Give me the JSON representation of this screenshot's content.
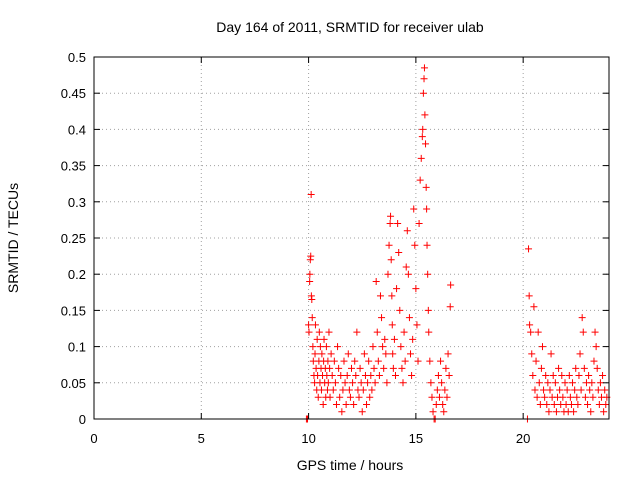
{
  "chart_data": {
    "type": "scatter",
    "title": "Day 164 of 2011, SRMTID for receiver ulab",
    "xlabel": "GPS time / hours",
    "ylabel": "SRMTID / TECUs",
    "xlim": [
      0,
      24
    ],
    "ylim": [
      0,
      0.5
    ],
    "x_ticks": [
      0,
      5,
      10,
      15,
      20
    ],
    "x_tick_labels": [
      "0",
      "5",
      "10",
      "15",
      "20"
    ],
    "y_ticks": [
      0,
      0.05,
      0.1,
      0.15,
      0.2,
      0.25,
      0.3,
      0.35,
      0.4,
      0.45,
      0.5
    ],
    "y_tick_labels": [
      "0",
      "0.05",
      "0.1",
      "0.15",
      "0.2",
      "0.25",
      "0.3",
      "0.35",
      "0.4",
      "0.45",
      "0.5"
    ],
    "grid": true,
    "marker": "+",
    "color": "#ff0000",
    "series": [
      {
        "name": "SRMTID",
        "points": [
          [
            9.9,
            0.0
          ],
          [
            9.95,
            0.0
          ],
          [
            10.0,
            0.13
          ],
          [
            10.02,
            0.12
          ],
          [
            10.05,
            0.19
          ],
          [
            10.06,
            0.2
          ],
          [
            10.08,
            0.22
          ],
          [
            10.1,
            0.225
          ],
          [
            10.12,
            0.31
          ],
          [
            10.13,
            0.17
          ],
          [
            10.15,
            0.165
          ],
          [
            10.17,
            0.14
          ],
          [
            10.2,
            0.1
          ],
          [
            10.22,
            0.08
          ],
          [
            10.25,
            0.06
          ],
          [
            10.28,
            0.05
          ],
          [
            10.3,
            0.09
          ],
          [
            10.32,
            0.13
          ],
          [
            10.35,
            0.07
          ],
          [
            10.38,
            0.04
          ],
          [
            10.4,
            0.11
          ],
          [
            10.42,
            0.06
          ],
          [
            10.45,
            0.03
          ],
          [
            10.48,
            0.08
          ],
          [
            10.5,
            0.12
          ],
          [
            10.53,
            0.05
          ],
          [
            10.55,
            0.1
          ],
          [
            10.58,
            0.07
          ],
          [
            10.6,
            0.04
          ],
          [
            10.62,
            0.09
          ],
          [
            10.65,
            0.06
          ],
          [
            10.68,
            0.02
          ],
          [
            10.7,
            0.08
          ],
          [
            10.72,
            0.11
          ],
          [
            10.75,
            0.05
          ],
          [
            10.78,
            0.07
          ],
          [
            10.8,
            0.03
          ],
          [
            10.83,
            0.1
          ],
          [
            10.85,
            0.06
          ],
          [
            10.88,
            0.04
          ],
          [
            10.9,
            0.08
          ],
          [
            10.92,
            0.05
          ],
          [
            10.95,
            0.12
          ],
          [
            10.98,
            0.07
          ],
          [
            11.0,
            0.03
          ],
          [
            11.05,
            0.09
          ],
          [
            11.1,
            0.06
          ],
          [
            11.15,
            0.04
          ],
          [
            11.2,
            0.08
          ],
          [
            11.25,
            0.05
          ],
          [
            11.3,
            0.02
          ],
          [
            11.35,
            0.1
          ],
          [
            11.4,
            0.07
          ],
          [
            11.45,
            0.03
          ],
          [
            11.5,
            0.06
          ],
          [
            11.55,
            0.01
          ],
          [
            11.6,
            0.04
          ],
          [
            11.65,
            0.08
          ],
          [
            11.7,
            0.05
          ],
          [
            11.75,
            0.02
          ],
          [
            11.8,
            0.06
          ],
          [
            11.85,
            0.09
          ],
          [
            11.9,
            0.04
          ],
          [
            11.95,
            0.03
          ],
          [
            12.0,
            0.07
          ],
          [
            12.05,
            0.05
          ],
          [
            12.1,
            0.02
          ],
          [
            12.15,
            0.08
          ],
          [
            12.2,
            0.06
          ],
          [
            12.25,
            0.12
          ],
          [
            12.3,
            0.04
          ],
          [
            12.35,
            0.03
          ],
          [
            12.4,
            0.07
          ],
          [
            12.45,
            0.05
          ],
          [
            12.5,
            0.01
          ],
          [
            12.55,
            0.04
          ],
          [
            12.6,
            0.09
          ],
          [
            12.65,
            0.06
          ],
          [
            12.7,
            0.02
          ],
          [
            12.75,
            0.05
          ],
          [
            12.8,
            0.08
          ],
          [
            12.85,
            0.03
          ],
          [
            12.9,
            0.06
          ],
          [
            12.95,
            0.04
          ],
          [
            13.0,
            0.1
          ],
          [
            13.05,
            0.07
          ],
          [
            13.1,
            0.05
          ],
          [
            13.15,
            0.19
          ],
          [
            13.2,
            0.12
          ],
          [
            13.25,
            0.08
          ],
          [
            13.3,
            0.06
          ],
          [
            13.35,
            0.17
          ],
          [
            13.4,
            0.14
          ],
          [
            13.45,
            0.1
          ],
          [
            13.5,
            0.07
          ],
          [
            13.55,
            0.11
          ],
          [
            13.6,
            0.09
          ],
          [
            13.65,
            0.05
          ],
          [
            13.7,
            0.2
          ],
          [
            13.75,
            0.24
          ],
          [
            13.8,
            0.27
          ],
          [
            13.82,
            0.28
          ],
          [
            13.85,
            0.22
          ],
          [
            13.88,
            0.17
          ],
          [
            13.9,
            0.13
          ],
          [
            13.92,
            0.09
          ],
          [
            13.95,
            0.07
          ],
          [
            14.0,
            0.11
          ],
          [
            14.05,
            0.06
          ],
          [
            14.1,
            0.18
          ],
          [
            14.15,
            0.27
          ],
          [
            14.2,
            0.23
          ],
          [
            14.25,
            0.15
          ],
          [
            14.3,
            0.1
          ],
          [
            14.35,
            0.07
          ],
          [
            14.4,
            0.05
          ],
          [
            14.45,
            0.12
          ],
          [
            14.5,
            0.08
          ],
          [
            14.55,
            0.21
          ],
          [
            14.6,
            0.26
          ],
          [
            14.65,
            0.2
          ],
          [
            14.7,
            0.14
          ],
          [
            14.75,
            0.09
          ],
          [
            14.8,
            0.06
          ],
          [
            14.85,
            0.11
          ],
          [
            14.9,
            0.29
          ],
          [
            14.95,
            0.24
          ],
          [
            15.0,
            0.18
          ],
          [
            15.05,
            0.13
          ],
          [
            15.1,
            0.08
          ],
          [
            15.15,
            0.27
          ],
          [
            15.2,
            0.33
          ],
          [
            15.25,
            0.36
          ],
          [
            15.3,
            0.39
          ],
          [
            15.32,
            0.4
          ],
          [
            15.35,
            0.45
          ],
          [
            15.38,
            0.47
          ],
          [
            15.4,
            0.485
          ],
          [
            15.42,
            0.42
          ],
          [
            15.45,
            0.38
          ],
          [
            15.48,
            0.32
          ],
          [
            15.5,
            0.29
          ],
          [
            15.52,
            0.24
          ],
          [
            15.55,
            0.2
          ],
          [
            15.58,
            0.15
          ],
          [
            15.6,
            0.12
          ],
          [
            15.65,
            0.08
          ],
          [
            15.7,
            0.05
          ],
          [
            15.75,
            0.03
          ],
          [
            15.8,
            0.01
          ],
          [
            15.85,
            0.0
          ],
          [
            15.9,
            0.0
          ],
          [
            15.95,
            0.02
          ],
          [
            16.0,
            0.04
          ],
          [
            16.05,
            0.06
          ],
          [
            16.1,
            0.03
          ],
          [
            16.15,
            0.08
          ],
          [
            16.2,
            0.05
          ],
          [
            16.25,
            0.02
          ],
          [
            16.3,
            0.01
          ],
          [
            16.35,
            0.04
          ],
          [
            16.4,
            0.07
          ],
          [
            16.45,
            0.03
          ],
          [
            16.5,
            0.09
          ],
          [
            16.55,
            0.06
          ],
          [
            16.6,
            0.155
          ],
          [
            16.62,
            0.185
          ],
          [
            20.2,
            0.0
          ],
          [
            20.25,
            0.235
          ],
          [
            20.28,
            0.17
          ],
          [
            20.3,
            0.13
          ],
          [
            20.35,
            0.12
          ],
          [
            20.4,
            0.09
          ],
          [
            20.45,
            0.06
          ],
          [
            20.5,
            0.155
          ],
          [
            20.55,
            0.04
          ],
          [
            20.6,
            0.08
          ],
          [
            20.65,
            0.03
          ],
          [
            20.7,
            0.12
          ],
          [
            20.75,
            0.05
          ],
          [
            20.8,
            0.02
          ],
          [
            20.85,
            0.07
          ],
          [
            20.9,
            0.1
          ],
          [
            20.95,
            0.04
          ],
          [
            21.0,
            0.03
          ],
          [
            21.05,
            0.06
          ],
          [
            21.1,
            0.02
          ],
          [
            21.15,
            0.05
          ],
          [
            21.2,
            0.01
          ],
          [
            21.25,
            0.04
          ],
          [
            21.3,
            0.09
          ],
          [
            21.35,
            0.03
          ],
          [
            21.4,
            0.06
          ],
          [
            21.45,
            0.02
          ],
          [
            21.5,
            0.05
          ],
          [
            21.55,
            0.01
          ],
          [
            21.6,
            0.03
          ],
          [
            21.65,
            0.07
          ],
          [
            21.7,
            0.04
          ],
          [
            21.75,
            0.02
          ],
          [
            21.8,
            0.06
          ],
          [
            21.85,
            0.03
          ],
          [
            21.9,
            0.01
          ],
          [
            21.95,
            0.05
          ],
          [
            22.0,
            0.02
          ],
          [
            22.05,
            0.04
          ],
          [
            22.1,
            0.01
          ],
          [
            22.15,
            0.06
          ],
          [
            22.2,
            0.03
          ],
          [
            22.25,
            0.02
          ],
          [
            22.3,
            0.05
          ],
          [
            22.35,
            0.01
          ],
          [
            22.4,
            0.04
          ],
          [
            22.45,
            0.07
          ],
          [
            22.5,
            0.03
          ],
          [
            22.55,
            0.02
          ],
          [
            22.6,
            0.06
          ],
          [
            22.65,
            0.09
          ],
          [
            22.7,
            0.04
          ],
          [
            22.75,
            0.14
          ],
          [
            22.8,
            0.12
          ],
          [
            22.85,
            0.07
          ],
          [
            22.9,
            0.03
          ],
          [
            22.95,
            0.05
          ],
          [
            23.0,
            0.02
          ],
          [
            23.05,
            0.06
          ],
          [
            23.1,
            0.04
          ],
          [
            23.15,
            0.01
          ],
          [
            23.2,
            0.05
          ],
          [
            23.25,
            0.03
          ],
          [
            23.3,
            0.08
          ],
          [
            23.35,
            0.12
          ],
          [
            23.4,
            0.1
          ],
          [
            23.45,
            0.07
          ],
          [
            23.5,
            0.04
          ],
          [
            23.55,
            0.02
          ],
          [
            23.6,
            0.05
          ],
          [
            23.65,
            0.03
          ],
          [
            23.7,
            0.06
          ],
          [
            23.75,
            0.01
          ],
          [
            23.8,
            0.04
          ],
          [
            23.85,
            0.02
          ],
          [
            23.9,
            0.03
          ]
        ]
      }
    ]
  }
}
